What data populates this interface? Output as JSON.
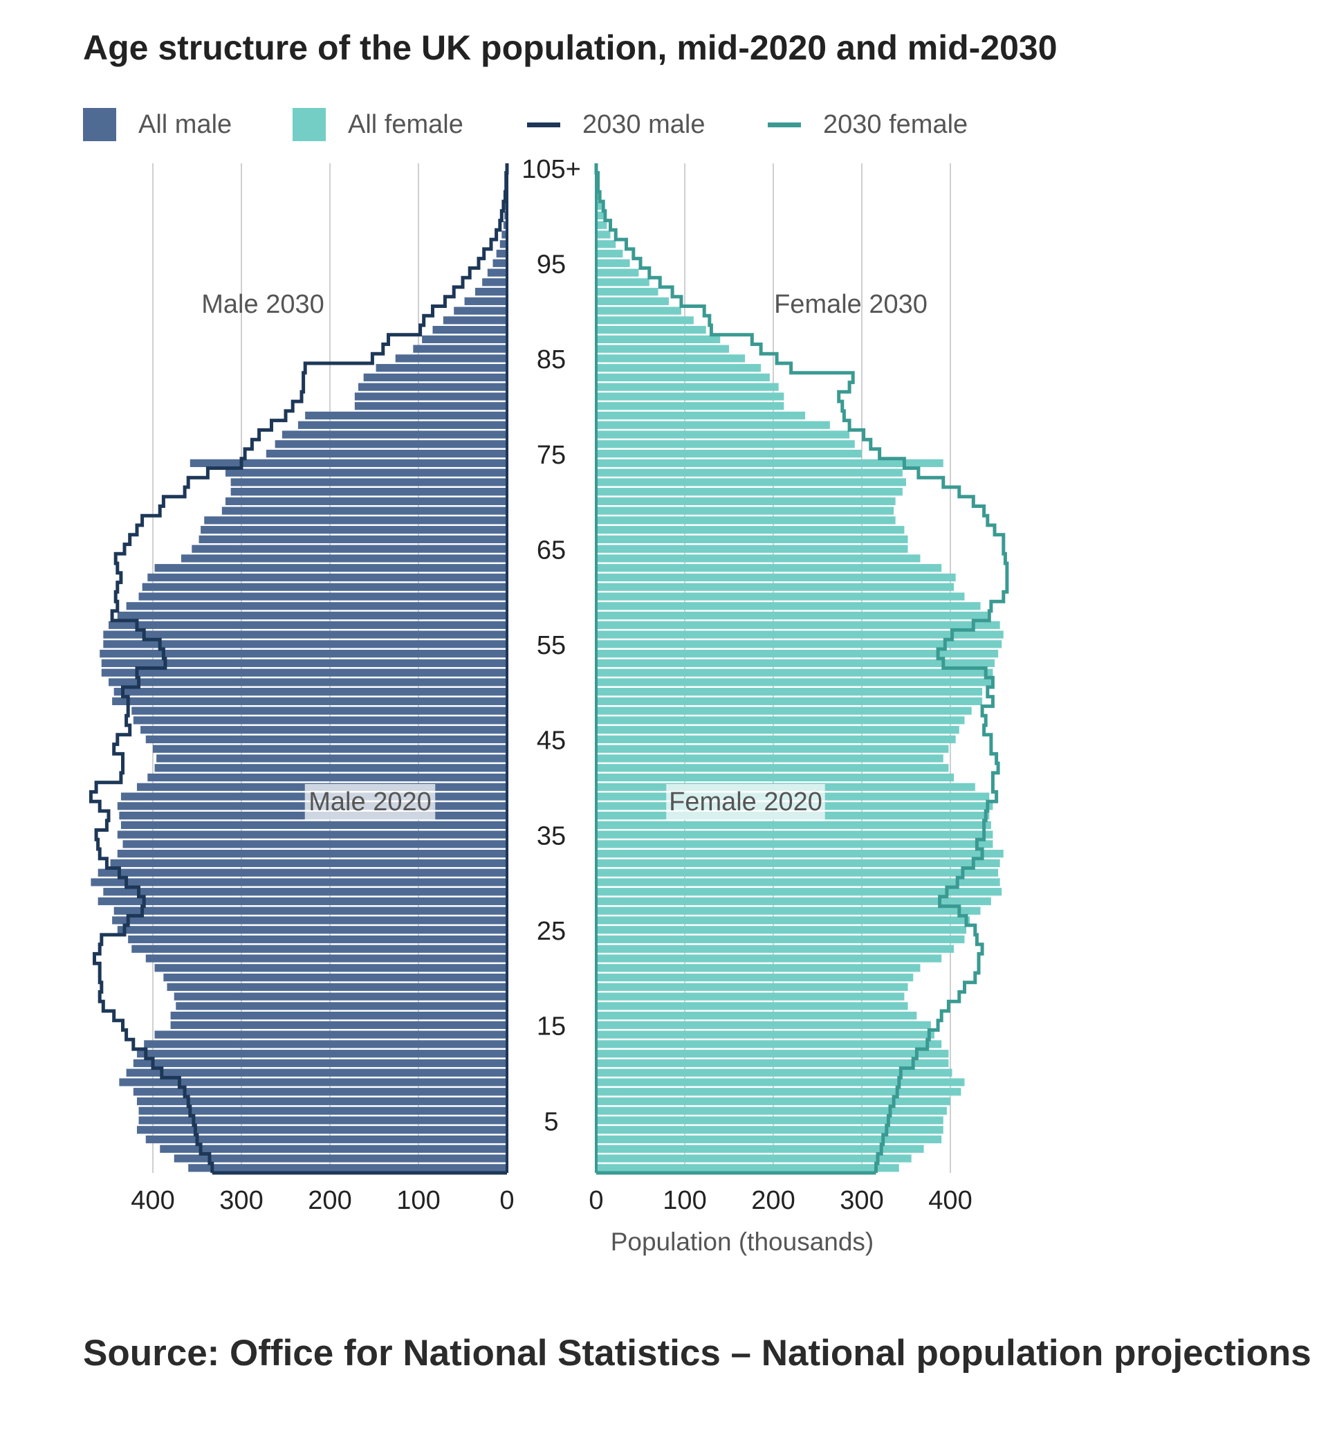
{
  "title": "Age structure of the UK population, mid-2020 and mid-2030",
  "source": "Source: Office for National Statistics – National population projections",
  "legend": [
    {
      "label": "All male",
      "kind": "box",
      "color": "#4f6b94"
    },
    {
      "label": "All female",
      "kind": "box",
      "color": "#74cec6"
    },
    {
      "label": "2030 male",
      "kind": "line",
      "color": "#1d3757"
    },
    {
      "label": "2030 female",
      "kind": "line",
      "color": "#3a9a92"
    }
  ],
  "chart_data": {
    "type": "bar",
    "orientation": "horizontal-pyramid",
    "x_label": "Population (thousands)",
    "x_ticks": [
      0,
      100,
      200,
      300,
      400
    ],
    "age_ticks": [
      "105+",
      "95",
      "85",
      "75",
      "65",
      "55",
      "45",
      "35",
      "25",
      "15",
      "5"
    ],
    "age_tick_values": [
      105,
      95,
      85,
      75,
      65,
      55,
      45,
      35,
      25,
      15,
      5
    ],
    "annotations": [
      "Male 2030",
      "Female 2030",
      "Male 2020",
      "Female 2020"
    ],
    "xlim": [
      0,
      470
    ],
    "ages": [
      0,
      1,
      2,
      3,
      4,
      5,
      6,
      7,
      8,
      9,
      10,
      11,
      12,
      13,
      14,
      15,
      16,
      17,
      18,
      19,
      20,
      21,
      22,
      23,
      24,
      25,
      26,
      27,
      28,
      29,
      30,
      31,
      32,
      33,
      34,
      35,
      36,
      37,
      38,
      39,
      40,
      41,
      42,
      43,
      44,
      45,
      46,
      47,
      48,
      49,
      50,
      51,
      52,
      53,
      54,
      55,
      56,
      57,
      58,
      59,
      60,
      61,
      62,
      63,
      64,
      65,
      66,
      67,
      68,
      69,
      70,
      71,
      72,
      73,
      74,
      75,
      76,
      77,
      78,
      79,
      80,
      81,
      82,
      83,
      84,
      85,
      86,
      87,
      88,
      89,
      90,
      91,
      92,
      93,
      94,
      95,
      96,
      97,
      98,
      99,
      100,
      101,
      102,
      103,
      104,
      105
    ],
    "series": [
      {
        "name": "All male",
        "color": "#4f6b94",
        "values": [
          360,
          376,
          392,
          408,
          418,
          416,
          416,
          418,
          422,
          438,
          430,
          422,
          418,
          410,
          398,
          380,
          380,
          374,
          376,
          384,
          388,
          398,
          408,
          424,
          428,
          440,
          446,
          444,
          462,
          456,
          470,
          462,
          448,
          440,
          434,
          440,
          436,
          438,
          440,
          436,
          418,
          406,
          398,
          396,
          400,
          408,
          414,
          422,
          424,
          446,
          444,
          450,
          458,
          458,
          460,
          456,
          456,
          450,
          440,
          430,
          416,
          412,
          406,
          398,
          368,
          356,
          348,
          346,
          342,
          322,
          318,
          312,
          312,
          318,
          358,
          272,
          262,
          254,
          236,
          228,
          172,
          172,
          168,
          162,
          148,
          126,
          106,
          96,
          84,
          72,
          60,
          48,
          36,
          28,
          22,
          16,
          12,
          8,
          6,
          4,
          3,
          2,
          1,
          1,
          1,
          0
        ]
      },
      {
        "name": "All female",
        "color": "#74cec6",
        "values": [
          342,
          356,
          370,
          390,
          392,
          392,
          396,
          400,
          412,
          416,
          402,
          398,
          398,
          390,
          382,
          378,
          362,
          352,
          348,
          352,
          358,
          366,
          390,
          404,
          416,
          418,
          422,
          434,
          446,
          458,
          456,
          454,
          456,
          460,
          448,
          448,
          446,
          444,
          448,
          444,
          428,
          404,
          398,
          392,
          398,
          406,
          410,
          416,
          424,
          436,
          436,
          446,
          448,
          450,
          454,
          458,
          460,
          456,
          442,
          434,
          416,
          404,
          406,
          390,
          366,
          352,
          352,
          348,
          338,
          336,
          338,
          346,
          350,
          346,
          392,
          300,
          292,
          286,
          264,
          236,
          212,
          212,
          206,
          196,
          186,
          168,
          150,
          140,
          124,
          110,
          96,
          82,
          70,
          60,
          48,
          38,
          30,
          22,
          16,
          12,
          8,
          6,
          4,
          2,
          2,
          0
        ]
      }
    ],
    "lines": [
      {
        "name": "2030 male",
        "color": "#1d3757",
        "values": [
          333,
          336,
          346,
          350,
          352,
          354,
          358,
          360,
          364,
          370,
          390,
          400,
          408,
          422,
          430,
          434,
          444,
          456,
          460,
          458,
          460,
          460,
          466,
          460,
          458,
          432,
          428,
          412,
          410,
          416,
          430,
          438,
          452,
          460,
          462,
          464,
          452,
          450,
          460,
          470,
          464,
          436,
          434,
          434,
          444,
          440,
          426,
          430,
          428,
          428,
          434,
          416,
          418,
          386,
          388,
          392,
          410,
          418,
          446,
          440,
          442,
          440,
          436,
          440,
          442,
          432,
          426,
          418,
          412,
          392,
          388,
          364,
          360,
          338,
          300,
          296,
          288,
          280,
          266,
          250,
          242,
          232,
          230,
          230,
          228,
          152,
          140,
          134,
          98,
          94,
          84,
          70,
          60,
          50,
          42,
          32,
          26,
          18,
          12,
          8,
          6,
          4,
          2,
          1,
          1,
          0
        ]
      },
      {
        "name": "2030 female",
        "color": "#3a9a92",
        "values": [
          316,
          318,
          322,
          324,
          328,
          330,
          332,
          336,
          340,
          342,
          344,
          358,
          362,
          374,
          376,
          386,
          390,
          398,
          410,
          416,
          428,
          432,
          432,
          436,
          430,
          428,
          418,
          410,
          388,
          396,
          408,
          414,
          426,
          436,
          430,
          438,
          438,
          440,
          442,
          452,
          448,
          448,
          454,
          452,
          446,
          446,
          438,
          440,
          436,
          448,
          442,
          448,
          440,
          392,
          386,
          394,
          402,
          426,
          444,
          446,
          460,
          464,
          464,
          464,
          462,
          460,
          460,
          450,
          442,
          438,
          426,
          410,
          392,
          364,
          348,
          320,
          310,
          302,
          286,
          280,
          278,
          274,
          286,
          290,
          220,
          204,
          186,
          176,
          130,
          128,
          122,
          96,
          86,
          72,
          60,
          50,
          42,
          34,
          22,
          16,
          10,
          8,
          4,
          2,
          2,
          0
        ]
      }
    ]
  }
}
